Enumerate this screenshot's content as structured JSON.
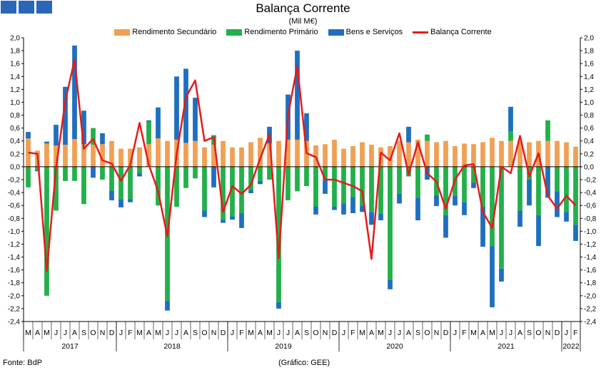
{
  "header": {
    "title": "Balança Corrente",
    "subtitle": "(Mil M€)"
  },
  "footer": {
    "source": "Fonte: BdP",
    "credit": "(Gráfico: GEE)"
  },
  "colors": {
    "secundario": "#f0a054",
    "primario": "#22b04b",
    "bens": "#1f6fbf",
    "balanca": "#e81a1a",
    "brand": "#2b66b8"
  },
  "chart_data": {
    "type": "bar",
    "stacked": true,
    "title": "Balança Corrente",
    "subtitle": "(Mil M€)",
    "ylim": [
      -2.4,
      2.0
    ],
    "ytick_step": 0.2,
    "yticks": [
      "2,0",
      "1,8",
      "1,6",
      "1,4",
      "1,2",
      "1,0",
      "0,8",
      "0,6",
      "0,4",
      "0,2",
      "0,0",
      "-0,2",
      "-0,4",
      "-0,6",
      "-0,8",
      "-1,0",
      "-1,2",
      "-1,4",
      "-1,6",
      "-1,8",
      "-2,0",
      "-2,2",
      "-2,4"
    ],
    "legend_position": "top-center",
    "grid": false,
    "categories": [
      "M",
      "A",
      "M",
      "J",
      "J",
      "A",
      "S",
      "O",
      "N",
      "D",
      "J",
      "F",
      "M",
      "A",
      "M",
      "J",
      "J",
      "A",
      "S",
      "O",
      "N",
      "D",
      "J",
      "F",
      "M",
      "A",
      "M",
      "J",
      "J",
      "A",
      "S",
      "O",
      "N",
      "D",
      "J",
      "F",
      "M",
      "A",
      "M",
      "J",
      "J",
      "A",
      "S",
      "O",
      "N",
      "D",
      "J",
      "F",
      "M",
      "A",
      "M",
      "J",
      "J",
      "A",
      "S",
      "O",
      "N",
      "D",
      "J",
      "F"
    ],
    "years": [
      {
        "label": "2017",
        "start": 0,
        "end": 9
      },
      {
        "label": "2018",
        "start": 10,
        "end": 21
      },
      {
        "label": "2019",
        "start": 22,
        "end": 33
      },
      {
        "label": "2020",
        "start": 34,
        "end": 45
      },
      {
        "label": "2021",
        "start": 46,
        "end": 57
      },
      {
        "label": "2022",
        "start": 58,
        "end": 59
      }
    ],
    "series": [
      {
        "name": "Rendimento Secundário",
        "kind": "bar",
        "values": [
          0.44,
          0.25,
          0.36,
          0.33,
          0.34,
          0.43,
          0.35,
          0.34,
          0.35,
          0.4,
          0.28,
          0.28,
          0.3,
          0.35,
          0.44,
          0.4,
          0.42,
          0.37,
          0.4,
          0.3,
          0.34,
          0.4,
          0.3,
          0.3,
          0.38,
          0.45,
          0.36,
          0.4,
          0.42,
          0.42,
          0.4,
          0.33,
          0.35,
          0.42,
          0.28,
          0.32,
          0.38,
          0.34,
          0.3,
          0.32,
          0.4,
          0.38,
          0.42,
          0.4,
          0.38,
          0.4,
          0.32,
          0.36,
          0.35,
          0.38,
          0.45,
          0.4,
          0.4,
          0.4,
          0.38,
          0.4,
          0.4,
          0.4,
          0.38,
          0.31
        ]
      },
      {
        "name": "Rendimento Primário",
        "kind": "bar",
        "values": [
          -0.32,
          -0.05,
          -2.0,
          -0.68,
          -0.22,
          -0.22,
          -0.58,
          0.26,
          -0.2,
          -0.37,
          -0.5,
          -0.5,
          -0.1,
          0.35,
          -0.6,
          -2.08,
          -0.62,
          -0.33,
          -0.18,
          -0.68,
          0.15,
          -0.82,
          -0.77,
          -0.72,
          -0.36,
          -0.22,
          -0.2,
          -2.1,
          -0.52,
          -0.38,
          -0.3,
          -0.62,
          -0.2,
          -0.62,
          -0.57,
          -0.47,
          -0.6,
          -0.7,
          -0.73,
          -1.75,
          -0.42,
          -0.15,
          -0.48,
          0.1,
          -0.44,
          -0.75,
          -0.45,
          -0.55,
          -0.25,
          -0.62,
          -1.23,
          -1.58,
          0.15,
          -0.68,
          -0.2,
          -0.75,
          0.32,
          -0.38,
          -0.7,
          -0.9
        ]
      },
      {
        "name": "Bens e Serviços",
        "kind": "bar",
        "values": [
          0.1,
          -0.02,
          0.03,
          0.32,
          0.9,
          1.45,
          0.52,
          -0.17,
          0.17,
          -0.15,
          -0.13,
          -0.05,
          -0.05,
          0.02,
          0.48,
          -0.15,
          0.98,
          1.15,
          0.67,
          -0.1,
          -0.32,
          -0.05,
          -0.05,
          -0.23,
          -0.05,
          -0.05,
          0.26,
          -0.1,
          0.7,
          1.38,
          0.43,
          -0.12,
          -0.22,
          -0.05,
          -0.17,
          -0.25,
          -0.1,
          -0.2,
          -0.1,
          -0.15,
          -0.15,
          0.24,
          -0.35,
          -0.2,
          -0.17,
          -0.35,
          -0.15,
          -0.2,
          -0.08,
          -0.62,
          -0.95,
          -0.2,
          0.38,
          -0.25,
          -0.4,
          -0.48,
          -0.48,
          -0.4,
          -0.15,
          -0.25
        ]
      },
      {
        "name": "Balança Corrente",
        "kind": "line",
        "values": [
          0.22,
          0.2,
          -1.62,
          -0.02,
          1.02,
          1.66,
          0.28,
          0.43,
          0.1,
          0.05,
          -0.22,
          0.03,
          0.68,
          0.03,
          -0.38,
          -1.08,
          0.2,
          1.08,
          1.34,
          0.4,
          0.46,
          -0.7,
          -0.3,
          -0.42,
          -0.28,
          0.13,
          0.5,
          -1.42,
          0.8,
          1.56,
          0.21,
          0.15,
          -0.2,
          -0.2,
          -0.25,
          -0.3,
          -0.38,
          -1.43,
          0.22,
          0.1,
          0.52,
          -0.12,
          0.38,
          -0.1,
          -0.23,
          -0.65,
          -0.2,
          0.02,
          0.04,
          -0.7,
          -0.95,
          0.0,
          -0.1,
          0.48,
          -0.15,
          0.21,
          -0.45,
          -0.65,
          -0.45,
          -0.6
        ]
      }
    ]
  }
}
